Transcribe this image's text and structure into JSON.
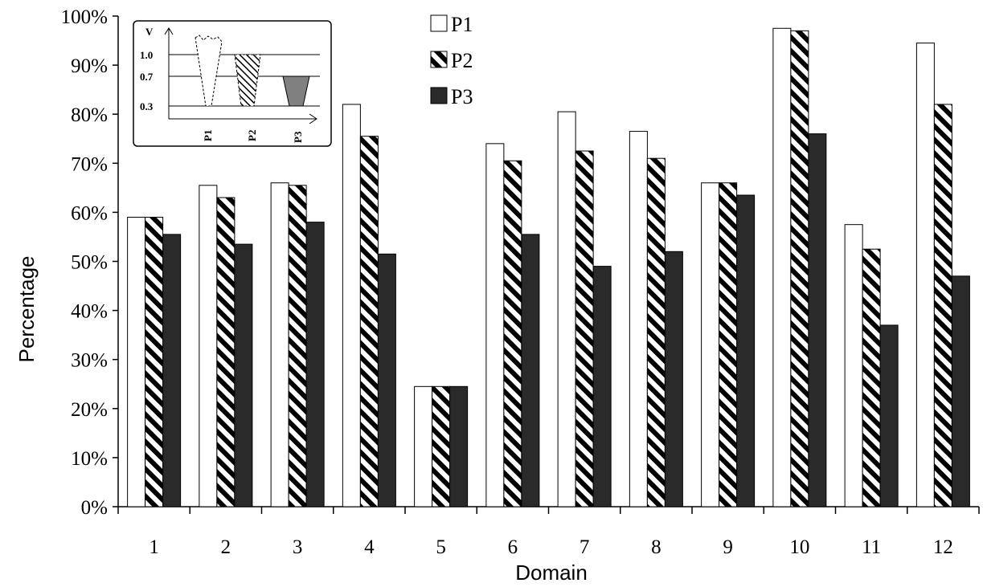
{
  "chart_data": {
    "type": "bar",
    "xlabel": "Domain",
    "ylabel": "Percentage",
    "categories": [
      "1",
      "2",
      "3",
      "4",
      "5",
      "6",
      "7",
      "8",
      "9",
      "10",
      "11",
      "12"
    ],
    "ylim": [
      0,
      100
    ],
    "y_ticks": [
      "0%",
      "10%",
      "20%",
      "30%",
      "40%",
      "50%",
      "60%",
      "70%",
      "80%",
      "90%",
      "100%"
    ],
    "legend_position": "top-center",
    "series": [
      {
        "name": "P1",
        "style": "white",
        "values": [
          59,
          65.5,
          66,
          82,
          24.5,
          74,
          80.5,
          76.5,
          66,
          97.5,
          57.5,
          94.5
        ]
      },
      {
        "name": "P2",
        "style": "hatched",
        "values": [
          59,
          63,
          65.5,
          75.5,
          24.5,
          70.5,
          72.5,
          71,
          66,
          97,
          52.5,
          82
        ]
      },
      {
        "name": "P3",
        "style": "black",
        "values": [
          55.5,
          53.5,
          58,
          51.5,
          24.5,
          55.5,
          49,
          52,
          63.5,
          76,
          37,
          47
        ]
      }
    ],
    "inset": {
      "axis_label": "V",
      "levels": [
        "1.0",
        "0.7",
        "0.3"
      ],
      "items": [
        "P1",
        "P2",
        "P3"
      ]
    }
  },
  "colors": {
    "bar_fill_black": "#2a2a2a",
    "inset_p3_fill": "#808080"
  }
}
